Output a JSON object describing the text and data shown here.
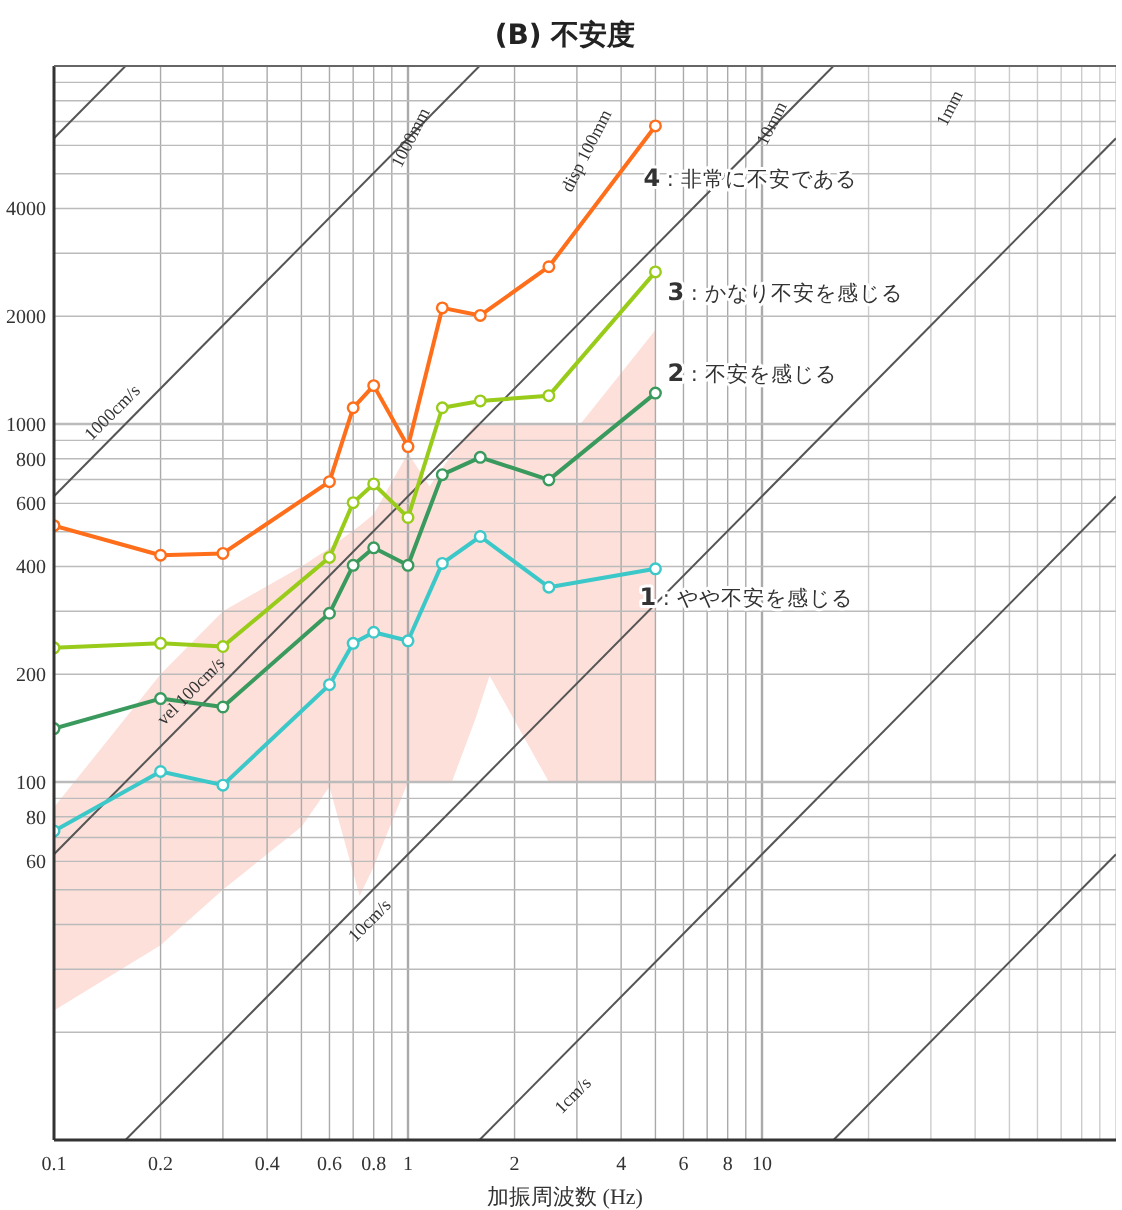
{
  "chart_data": {
    "type": "line",
    "title": "(B) 不安度",
    "xlabel": "加振周波数 (Hz)",
    "log": "xy",
    "grid": true,
    "xlim": [
      0.1,
      100
    ],
    "ylim": [
      10,
      10000
    ],
    "xticks": [
      0.1,
      0.2,
      {
        "value": 0.3,
        "label": null
      },
      0.4,
      {
        "value": 0.5,
        "label": null
      },
      0.6,
      {
        "value": 0.7,
        "label": null
      },
      0.8,
      {
        "value": 0.9,
        "label": null
      },
      1,
      2,
      {
        "value": 3,
        "label": null
      },
      4,
      {
        "value": 5,
        "label": null
      },
      6,
      {
        "value": 7,
        "label": null
      },
      8,
      {
        "value": 9,
        "label": null
      },
      10,
      {
        "value": 20,
        "label": null
      },
      {
        "value": 30,
        "label": null
      },
      {
        "value": 40,
        "label": null
      },
      {
        "value": 50,
        "label": null
      },
      {
        "value": 60,
        "label": null
      },
      {
        "value": 70,
        "label": null
      },
      {
        "value": 80,
        "label": null
      },
      {
        "value": 90,
        "label": null
      },
      {
        "value": 100,
        "label": null
      }
    ],
    "yticks": [
      {
        "value": 10,
        "label": null
      },
      {
        "value": 20,
        "label": null
      },
      {
        "value": 30,
        "label": null
      },
      {
        "value": 40,
        "label": null
      },
      {
        "value": 50,
        "label": null
      },
      60,
      {
        "value": 70,
        "label": null
      },
      80,
      {
        "value": 90,
        "label": null
      },
      100,
      200,
      {
        "value": 300,
        "label": null
      },
      400,
      {
        "value": 500,
        "label": null
      },
      600,
      {
        "value": 700,
        "label": null
      },
      800,
      {
        "value": 900,
        "label": null
      },
      1000,
      2000,
      {
        "value": 3000,
        "label": null
      },
      4000,
      {
        "value": 5000,
        "label": null
      },
      {
        "value": 6000,
        "label": null
      },
      {
        "value": 7000,
        "label": null
      },
      {
        "value": 8000,
        "label": null
      },
      {
        "value": 9000,
        "label": null
      },
      {
        "value": 10000,
        "label": null
      }
    ],
    "series": [
      {
        "type": "area",
        "color": "#fde0da",
        "x": [
          0.1,
          0.2,
          0.3,
          0.5,
          0.6,
          0.73,
          0.8,
          1,
          1.15,
          1.33,
          1.55,
          1.7,
          2.5,
          3.07,
          5
        ],
        "values": [
          null,
          null,
          null,
          null,
          null,
          null,
          null,
          null,
          null,
          null,
          null,
          null,
          null,
          null,
          null
        ],
        "upper": [
          85,
          200,
          300,
          400,
          450,
          520,
          560,
          830,
          670,
          820,
          1000,
          1000,
          1000,
          1000,
          1830
        ],
        "lower": [
          23,
          35,
          50,
          75,
          97,
          48,
          58,
          100,
          100,
          100,
          150,
          198,
          100,
          100,
          100
        ]
      },
      {
        "color": "#555555",
        "x": [
          0.1,
          0.1592
        ],
        "values": [
          6283,
          10000
        ]
      },
      {
        "color": "#555555",
        "x": [
          0.1,
          1.592
        ],
        "values": [
          628.3,
          10000
        ]
      },
      {
        "color": "#555555",
        "x": [
          0.1,
          15.92
        ],
        "values": [
          62.83,
          10000
        ]
      },
      {
        "color": "#555555",
        "x": [
          0.1592,
          100
        ],
        "values": [
          10,
          6283
        ]
      },
      {
        "color": "#555555",
        "x": [
          1.592,
          100
        ],
        "values": [
          10,
          628.3
        ]
      },
      {
        "color": "#555555",
        "x": [
          15.92,
          100
        ],
        "values": [
          10,
          62.83
        ]
      },
      {
        "name": "4 : 非常に不安である",
        "marker": "circle",
        "color": "#ff6e1a",
        "x": [
          0.1,
          0.2,
          0.3,
          0.6,
          0.7,
          0.8,
          1,
          1.25,
          1.6,
          2.5,
          5
        ],
        "values": [
          520,
          430,
          435,
          690,
          1110,
          1280,
          865,
          2110,
          2010,
          2750,
          6800
        ]
      },
      {
        "name": "3 : かなり不安を感じる",
        "marker": "circle",
        "color": "#99cc1a",
        "x": [
          0.1,
          0.2,
          0.3,
          0.6,
          0.7,
          0.8,
          1,
          1.25,
          1.6,
          2.5,
          5
        ],
        "values": [
          237,
          244,
          239,
          424,
          603,
          680,
          548,
          1110,
          1160,
          1200,
          2660
        ]
      },
      {
        "name": "2 : 不安を感じる",
        "marker": "circle",
        "color": "#3a9a5e",
        "x": [
          0.1,
          0.2,
          0.3,
          0.6,
          0.7,
          0.8,
          1,
          1.25,
          1.6,
          2.5,
          5
        ],
        "values": [
          141,
          171,
          162,
          296,
          403,
          451,
          403,
          722,
          807,
          698,
          1220
        ]
      },
      {
        "name": "1 : やや不安を感じる",
        "marker": "circle",
        "color": "#3cc8c8",
        "x": [
          0.1,
          0.2,
          0.3,
          0.6,
          0.7,
          0.8,
          1,
          1.25,
          1.6,
          2.5,
          5
        ],
        "values": [
          73,
          107,
          98,
          187,
          244,
          262,
          248,
          408,
          485,
          350,
          394
        ]
      }
    ],
    "annotations": [
      "1000cm/s",
      "vel 100cm/s",
      "10cm/s",
      "1cm/s",
      "1000mm",
      "disp 100mm",
      "10mm",
      "1mm"
    ]
  }
}
